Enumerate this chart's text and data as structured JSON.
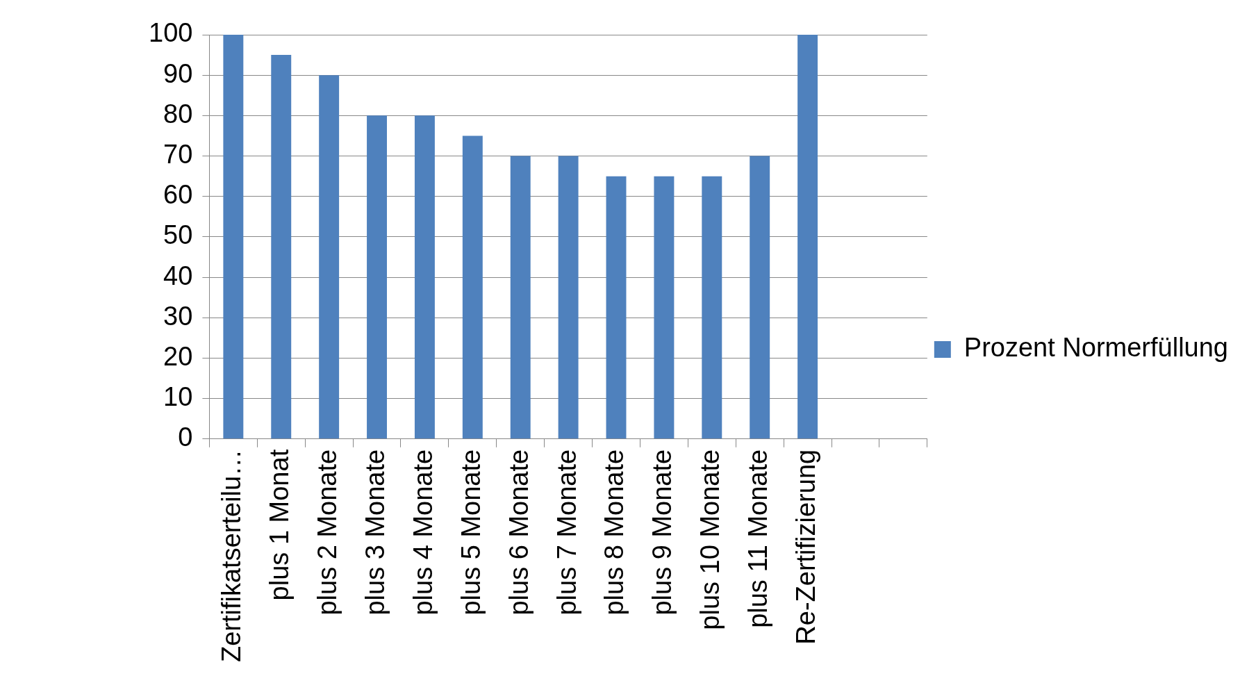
{
  "chart_data": {
    "type": "bar",
    "categories": [
      "Zertifikatserteilu…",
      "plus 1 Monat",
      "plus 2 Monate",
      "plus 3 Monate",
      "plus 4 Monate",
      "plus 5 Monate",
      "plus 6 Monate",
      "plus 7 Monate",
      "plus 8 Monate",
      "plus 9 Monate",
      "plus 10 Monate",
      "plus 11 Monate",
      "Re-Zertifizierung",
      null,
      null
    ],
    "series": [
      {
        "name": "Prozent Normerfüllung",
        "color": "#4f81bd",
        "values": [
          100,
          95,
          90,
          80,
          80,
          75,
          70,
          70,
          65,
          65,
          65,
          70,
          100,
          null,
          null
        ]
      }
    ],
    "ylim": [
      0,
      100
    ],
    "yticks": [
      0,
      10,
      20,
      30,
      40,
      50,
      60,
      70,
      80,
      90,
      100
    ],
    "grid": "y",
    "legend": "right"
  }
}
